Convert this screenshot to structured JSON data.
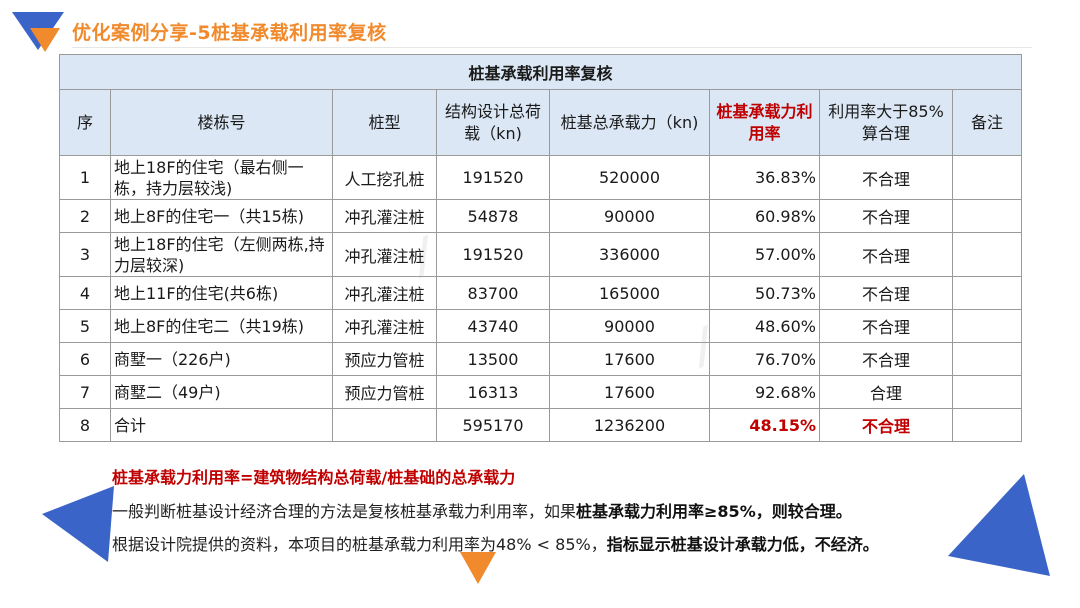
{
  "slide": {
    "title": "优化案例分享-5桩基承载利用率复核"
  },
  "table": {
    "caption": "桩基承载利用率复核",
    "headers": {
      "no": "序",
      "building": "楼栋号",
      "pile_type": "桩型",
      "design_load": "结构设计总荷载（kn)",
      "capacity": "桩基总承载力（kn)",
      "utilization": "桩基承载力利用率",
      "over85": "利用率大于85%算合理",
      "remark": "备注"
    },
    "rows": [
      {
        "no": "1",
        "building": "地上18F的住宅（最右侧一栋，持力层较浅)",
        "pile_type": "人工挖孔桩",
        "design_load": "191520",
        "capacity": "520000",
        "utilization": "36.83%",
        "over85": "不合理",
        "remark": ""
      },
      {
        "no": "2",
        "building": "地上8F的住宅一（共15栋)",
        "pile_type": "冲孔灌注桩",
        "design_load": "54878",
        "capacity": "90000",
        "utilization": "60.98%",
        "over85": "不合理",
        "remark": ""
      },
      {
        "no": "3",
        "building": "地上18F的住宅（左侧两栋,持力层较深)",
        "pile_type": "冲孔灌注桩",
        "design_load": "191520",
        "capacity": "336000",
        "utilization": "57.00%",
        "over85": "不合理",
        "remark": ""
      },
      {
        "no": "4",
        "building": "地上11F的住宅(共6栋)",
        "pile_type": "冲孔灌注桩",
        "design_load": "83700",
        "capacity": "165000",
        "utilization": "50.73%",
        "over85": "不合理",
        "remark": ""
      },
      {
        "no": "5",
        "building": "地上8F的住宅二（共19栋)",
        "pile_type": "冲孔灌注桩",
        "design_load": "43740",
        "capacity": "90000",
        "utilization": "48.60%",
        "over85": "不合理",
        "remark": ""
      },
      {
        "no": "6",
        "building": "商墅一（226户)",
        "pile_type": "预应力管桩",
        "design_load": "13500",
        "capacity": "17600",
        "utilization": "76.70%",
        "over85": "不合理",
        "remark": ""
      },
      {
        "no": "7",
        "building": "商墅二（49户)",
        "pile_type": "预应力管桩",
        "design_load": "16313",
        "capacity": "17600",
        "utilization": "92.68%",
        "over85": "合理",
        "remark": ""
      },
      {
        "no": "8",
        "building": "合计",
        "pile_type": "",
        "design_load": "595170",
        "capacity": "1236200",
        "utilization": "48.15%",
        "over85": "不合理",
        "remark": ""
      }
    ]
  },
  "notes": {
    "formula": "桩基承载力利用率=建筑物结构总荷载/桩基础的总承载力",
    "p1_normal": "一般判断桩基设计经济合理的方法是复核桩基承载力利用率，如果",
    "p1_bold": "桩基承载力利用率≥85%，则较合理。",
    "p2_normal": "根据设计院提供的资料，本项目的桩基承载力利用率为48% < 85%，",
    "p2_bold": "指标显示桩基设计承载力低，不经济。"
  },
  "colors": {
    "accent_orange": "#f08a2c",
    "accent_blue": "#3a64c8",
    "header_fill": "#dbe7f4",
    "highlight_red": "#c00000"
  }
}
